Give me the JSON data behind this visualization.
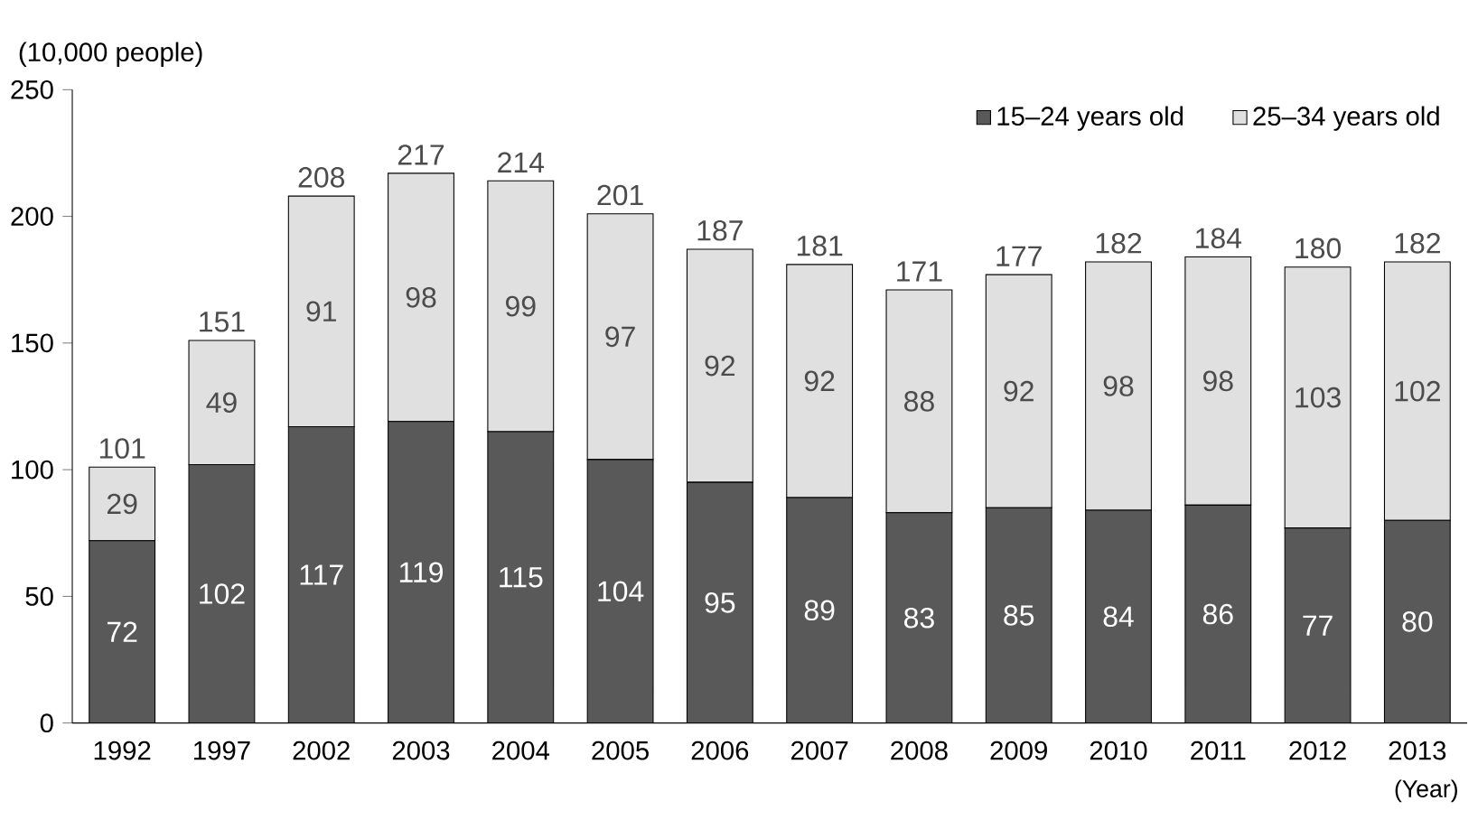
{
  "chart_data": {
    "type": "bar",
    "stacked": true,
    "ylabel": "(10,000 people)",
    "xlabel": "(Year)",
    "categories": [
      "1992",
      "1997",
      "2002",
      "2003",
      "2004",
      "2005",
      "2006",
      "2007",
      "2008",
      "2009",
      "2010",
      "2011",
      "2012",
      "2013"
    ],
    "series": [
      {
        "name": "15–24 years old",
        "color": "#595959",
        "values": [
          72,
          102,
          117,
          119,
          115,
          104,
          95,
          89,
          83,
          85,
          84,
          86,
          77,
          80
        ]
      },
      {
        "name": "25–34 years old",
        "color": "#e0e0e0",
        "values": [
          29,
          49,
          91,
          98,
          99,
          97,
          92,
          92,
          88,
          92,
          98,
          98,
          103,
          102
        ]
      }
    ],
    "totals": [
      "101",
      "151",
      "208",
      "217",
      "214",
      "201",
      "187",
      "181",
      "171",
      "177",
      "182",
      "184",
      "180",
      "182"
    ],
    "ylim": [
      0,
      250
    ],
    "yticks": [
      0,
      50,
      100,
      150,
      200,
      250
    ],
    "data_labels": true,
    "grid": false,
    "legend": "top right"
  }
}
